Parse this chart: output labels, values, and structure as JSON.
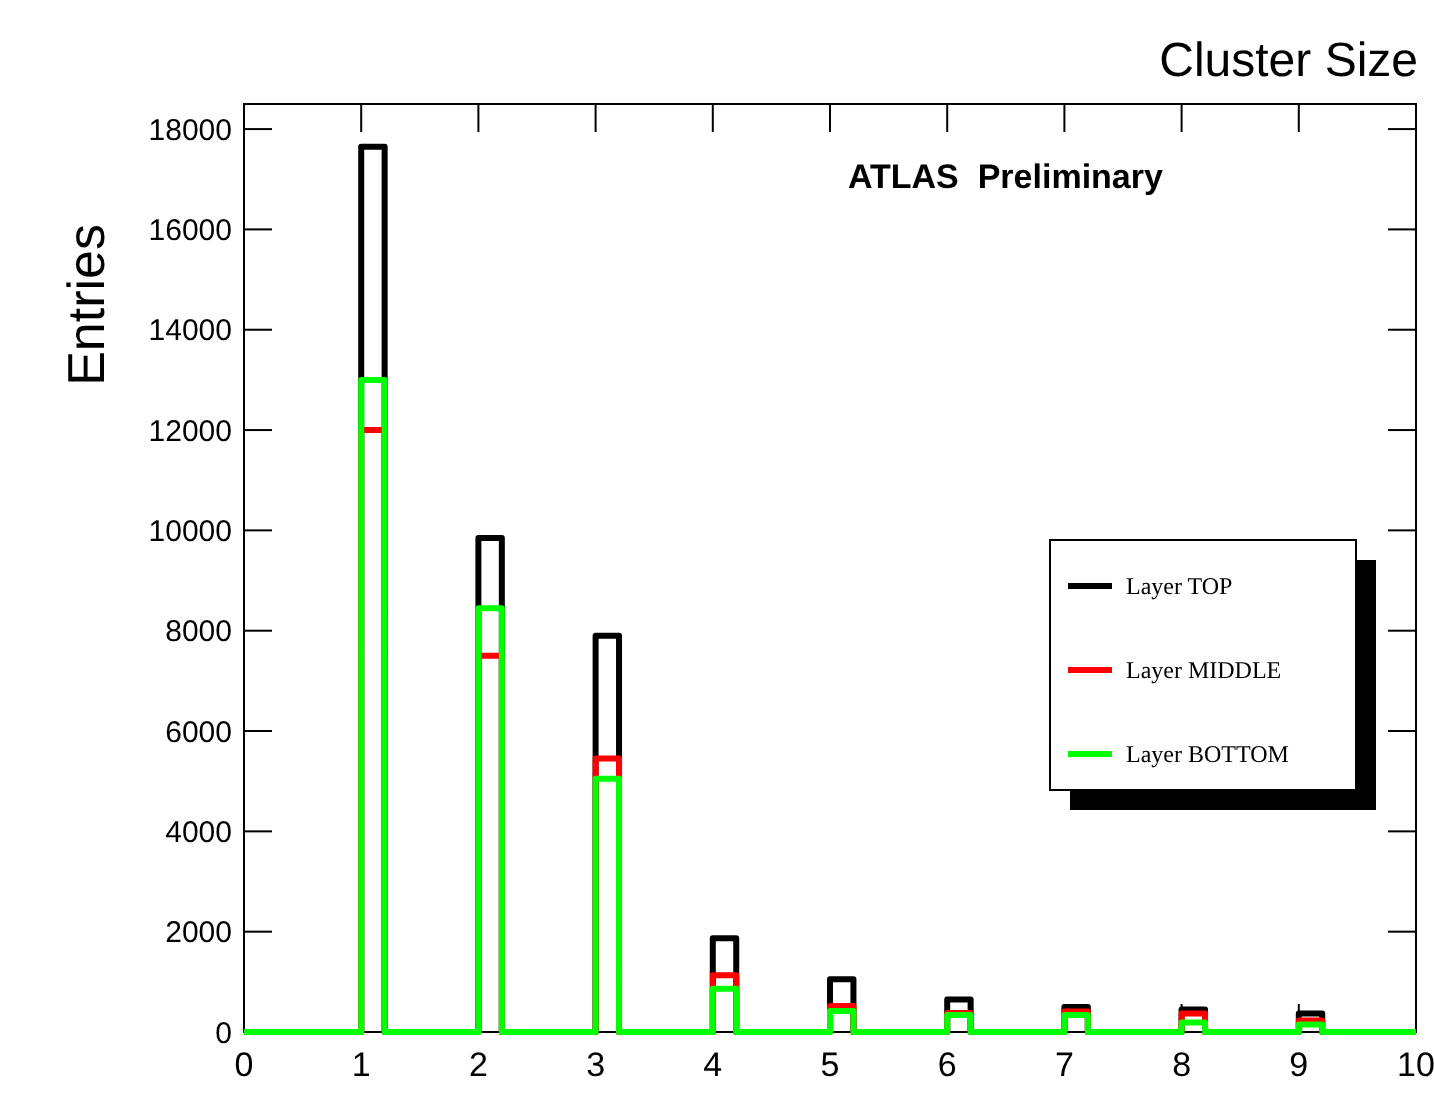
{
  "chart_data": {
    "type": "histogram",
    "title": "Cluster Size",
    "ylabel": "Entries",
    "annotations": [
      "ATLAS  Preliminary"
    ],
    "bins": [
      0,
      0.2,
      0.4,
      0.6,
      0.8,
      1,
      1.2,
      1.4,
      1.6,
      1.8,
      2,
      2.2,
      2.4,
      2.6,
      2.8,
      3,
      3.2,
      3.4,
      3.6,
      3.8,
      4,
      4.2,
      4.4,
      4.6,
      4.8,
      5,
      5.2,
      5.4,
      5.6,
      5.8,
      6,
      6.2,
      6.4,
      6.6,
      6.8,
      7,
      7.2,
      7.4,
      7.6,
      7.8,
      8,
      8.2,
      8.4,
      8.6,
      8.8,
      9,
      9.2,
      9.4,
      9.6,
      9.8,
      10
    ],
    "series": [
      {
        "name": "Layer TOP",
        "color": "#000000",
        "values": [
          0,
          0,
          0,
          0,
          0,
          17650,
          0,
          0,
          0,
          0,
          9850,
          0,
          0,
          0,
          0,
          7900,
          0,
          0,
          0,
          0,
          1870,
          0,
          0,
          0,
          0,
          1050,
          0,
          0,
          0,
          0,
          650,
          0,
          0,
          0,
          0,
          500,
          0,
          0,
          0,
          0,
          450,
          0,
          0,
          0,
          0,
          370,
          0,
          0,
          0,
          0
        ]
      },
      {
        "name": "Layer MIDDLE",
        "color": "#ff0000",
        "values": [
          0,
          0,
          0,
          0,
          0,
          12000,
          0,
          0,
          0,
          0,
          7500,
          0,
          0,
          0,
          0,
          5450,
          0,
          0,
          0,
          0,
          1130,
          0,
          0,
          0,
          0,
          520,
          0,
          0,
          0,
          0,
          380,
          0,
          0,
          0,
          0,
          410,
          0,
          0,
          0,
          0,
          370,
          0,
          0,
          0,
          0,
          230,
          0,
          0,
          0,
          0
        ]
      },
      {
        "name": "Layer BOTTOM",
        "color": "#00ff00",
        "values": [
          0,
          0,
          0,
          0,
          0,
          13000,
          0,
          0,
          0,
          0,
          8450,
          0,
          0,
          0,
          0,
          5050,
          0,
          0,
          0,
          0,
          860,
          0,
          0,
          0,
          0,
          420,
          0,
          0,
          0,
          0,
          340,
          0,
          0,
          0,
          0,
          340,
          0,
          0,
          0,
          0,
          190,
          0,
          0,
          0,
          0,
          150,
          0,
          0,
          0,
          0
        ]
      }
    ],
    "xlim": [
      0,
      10
    ],
    "xticks": [
      0,
      1,
      2,
      3,
      4,
      5,
      6,
      7,
      8,
      9,
      10
    ],
    "ylim": [
      0,
      18500
    ],
    "yticks": [
      0,
      2000,
      4000,
      6000,
      8000,
      10000,
      12000,
      14000,
      16000,
      18000
    ],
    "legend": "right",
    "grid": false
  }
}
